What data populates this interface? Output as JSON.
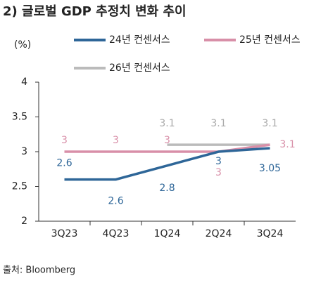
{
  "chart_data": {
    "type": "line",
    "title": "2) 글로벌 GDP 추정치 변화 추이",
    "unit_label": "(%)",
    "source": "출처: Bloomberg",
    "categories": [
      "3Q23",
      "4Q23",
      "1Q24",
      "2Q24",
      "3Q24"
    ],
    "series": [
      {
        "name": "24년 컨센서스",
        "color": "#2e6698",
        "values": [
          2.6,
          2.6,
          2.8,
          3,
          3.05
        ]
      },
      {
        "name": "25년 컨센서스",
        "color": "#d88fa8",
        "values": [
          3,
          3,
          3,
          3,
          3.1
        ]
      },
      {
        "name": "26년 컨센서스",
        "color": "#bbbbbb",
        "values": [
          null,
          null,
          3.1,
          3.1,
          3.1
        ]
      }
    ],
    "ylim": [
      2,
      4
    ],
    "yticks": [
      2,
      2.5,
      3,
      3.5,
      4
    ]
  }
}
